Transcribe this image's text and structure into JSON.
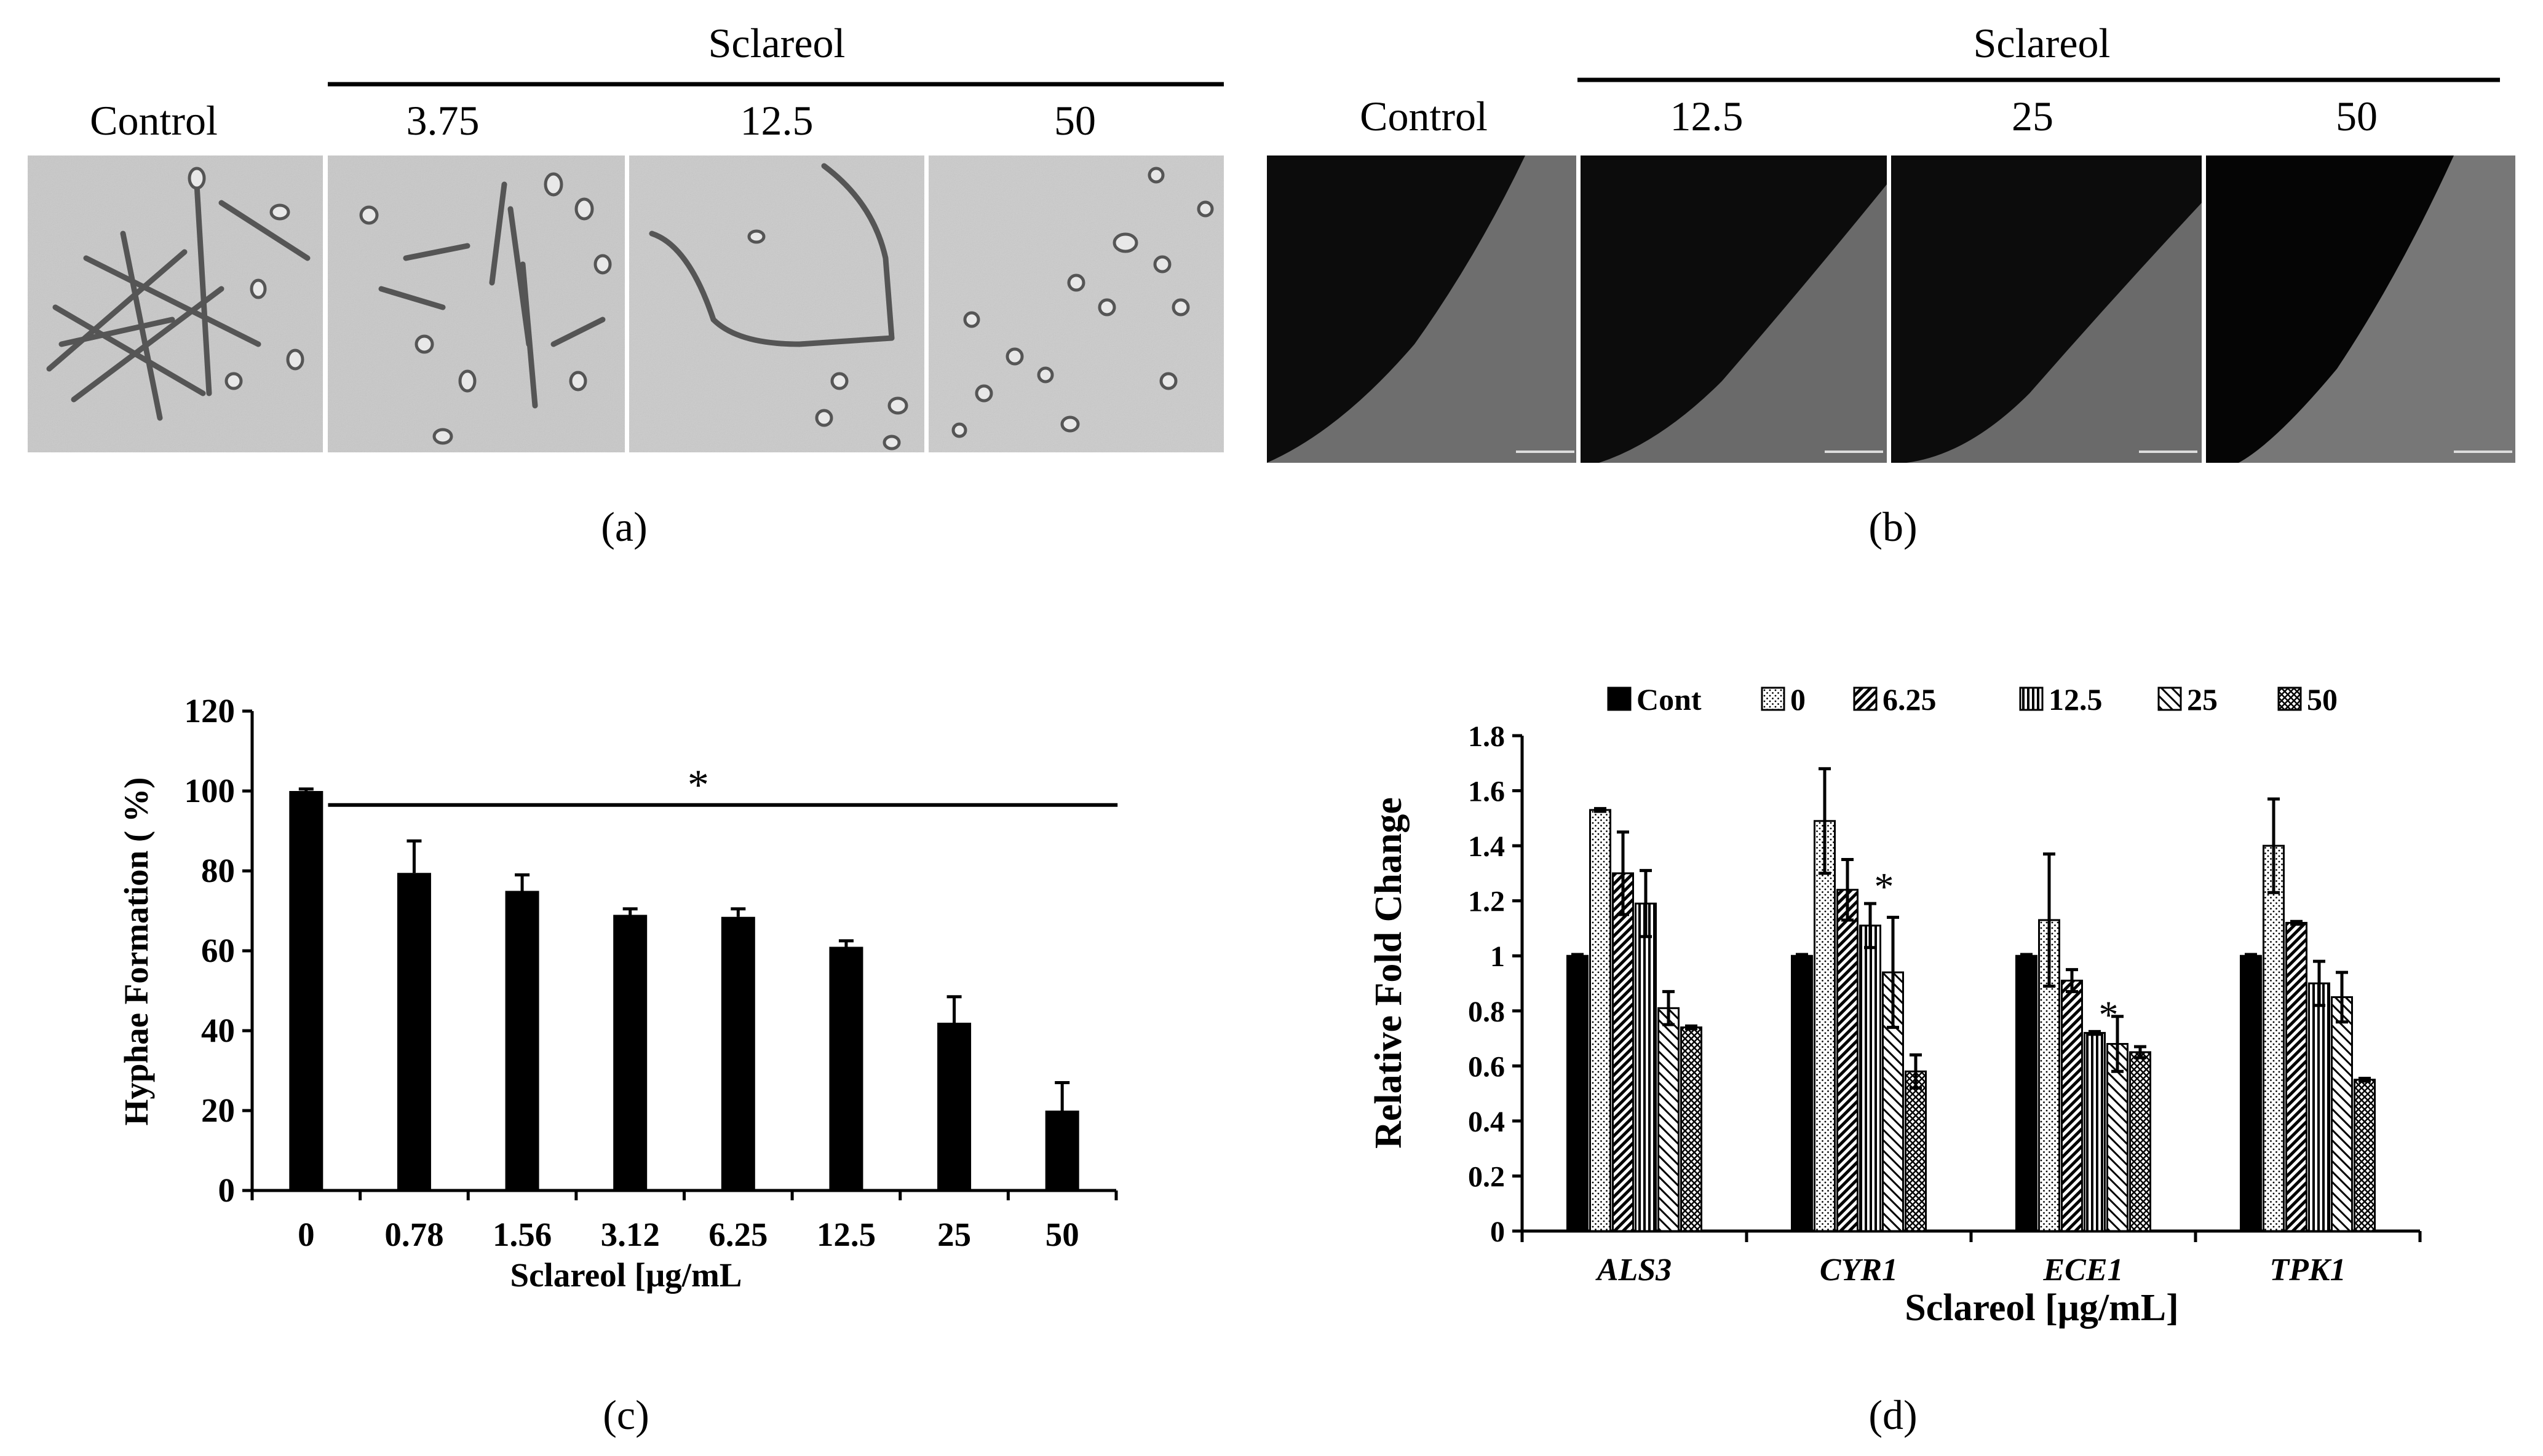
{
  "panel_a": {
    "group_label": "Sclareol",
    "columns": [
      "Control",
      "3.75",
      "12.5",
      "50"
    ],
    "caption": "(a)"
  },
  "panel_b": {
    "group_label": "Sclareol",
    "columns": [
      "Control",
      "12.5",
      "25",
      "50"
    ],
    "caption": "(b)"
  },
  "chart_data": [
    {
      "panel": "c",
      "type": "bar",
      "categories": [
        "0",
        "0.78",
        "1.56",
        "3.12",
        "6.25",
        "12.5",
        "25",
        "50"
      ],
      "values": [
        100,
        79.5,
        75,
        69,
        68.5,
        61,
        42,
        20
      ],
      "errors": [
        0.5,
        8,
        4,
        1.5,
        2,
        1.5,
        6.5,
        7
      ],
      "ylabel": "Hyphae Formation ( %)",
      "xlabel": "Sclareol [μg/mL",
      "yticks": [
        "0",
        "20",
        "40",
        "60",
        "80",
        "100",
        "120"
      ],
      "ylim": [
        0,
        120
      ],
      "significance": "*",
      "bar_color": "#000000",
      "caption": "(c)"
    },
    {
      "panel": "d",
      "type": "bar",
      "categories": [
        "ALS3",
        "CYR1",
        "ECE1",
        "TPK1"
      ],
      "series": [
        {
          "name": "Cont",
          "values": [
            1.0,
            1.0,
            1.0,
            1.0
          ],
          "errors": [
            0.005,
            0.005,
            0.005,
            0.005
          ]
        },
        {
          "name": "0",
          "values": [
            1.53,
            1.49,
            1.13,
            1.4
          ],
          "errors": [
            0.005,
            0.19,
            0.24,
            0.17
          ]
        },
        {
          "name": "6.25",
          "values": [
            1.3,
            1.24,
            0.91,
            1.12
          ],
          "errors": [
            0.15,
            0.11,
            0.04,
            0.005
          ]
        },
        {
          "name": "12.5",
          "values": [
            1.19,
            1.11,
            0.72,
            0.9
          ],
          "errors": [
            0.12,
            0.08,
            0.005,
            0.08
          ]
        },
        {
          "name": "25",
          "values": [
            0.81,
            0.94,
            0.68,
            0.85
          ],
          "errors": [
            0.06,
            0.2,
            0.1,
            0.09
          ]
        },
        {
          "name": "50",
          "values": [
            0.74,
            0.58,
            0.65,
            0.55
          ],
          "errors": [
            0.005,
            0.06,
            0.02,
            0.005
          ]
        }
      ],
      "significance": [
        {
          "category": "CYR1",
          "series": "12.5",
          "mark": "*"
        },
        {
          "category": "ECE1",
          "series": "12.5",
          "mark": "*"
        }
      ],
      "ylabel": "Relative Fold Change",
      "xlabel": "Sclareol [μg/mL]",
      "yticks": [
        "0",
        "0.2",
        "0.4",
        "0.6",
        "0.8",
        "1",
        "1.2",
        "1.4",
        "1.6",
        "1.8"
      ],
      "ylim": [
        0,
        1.8
      ],
      "legend_position": "top",
      "caption": "(d)"
    }
  ]
}
